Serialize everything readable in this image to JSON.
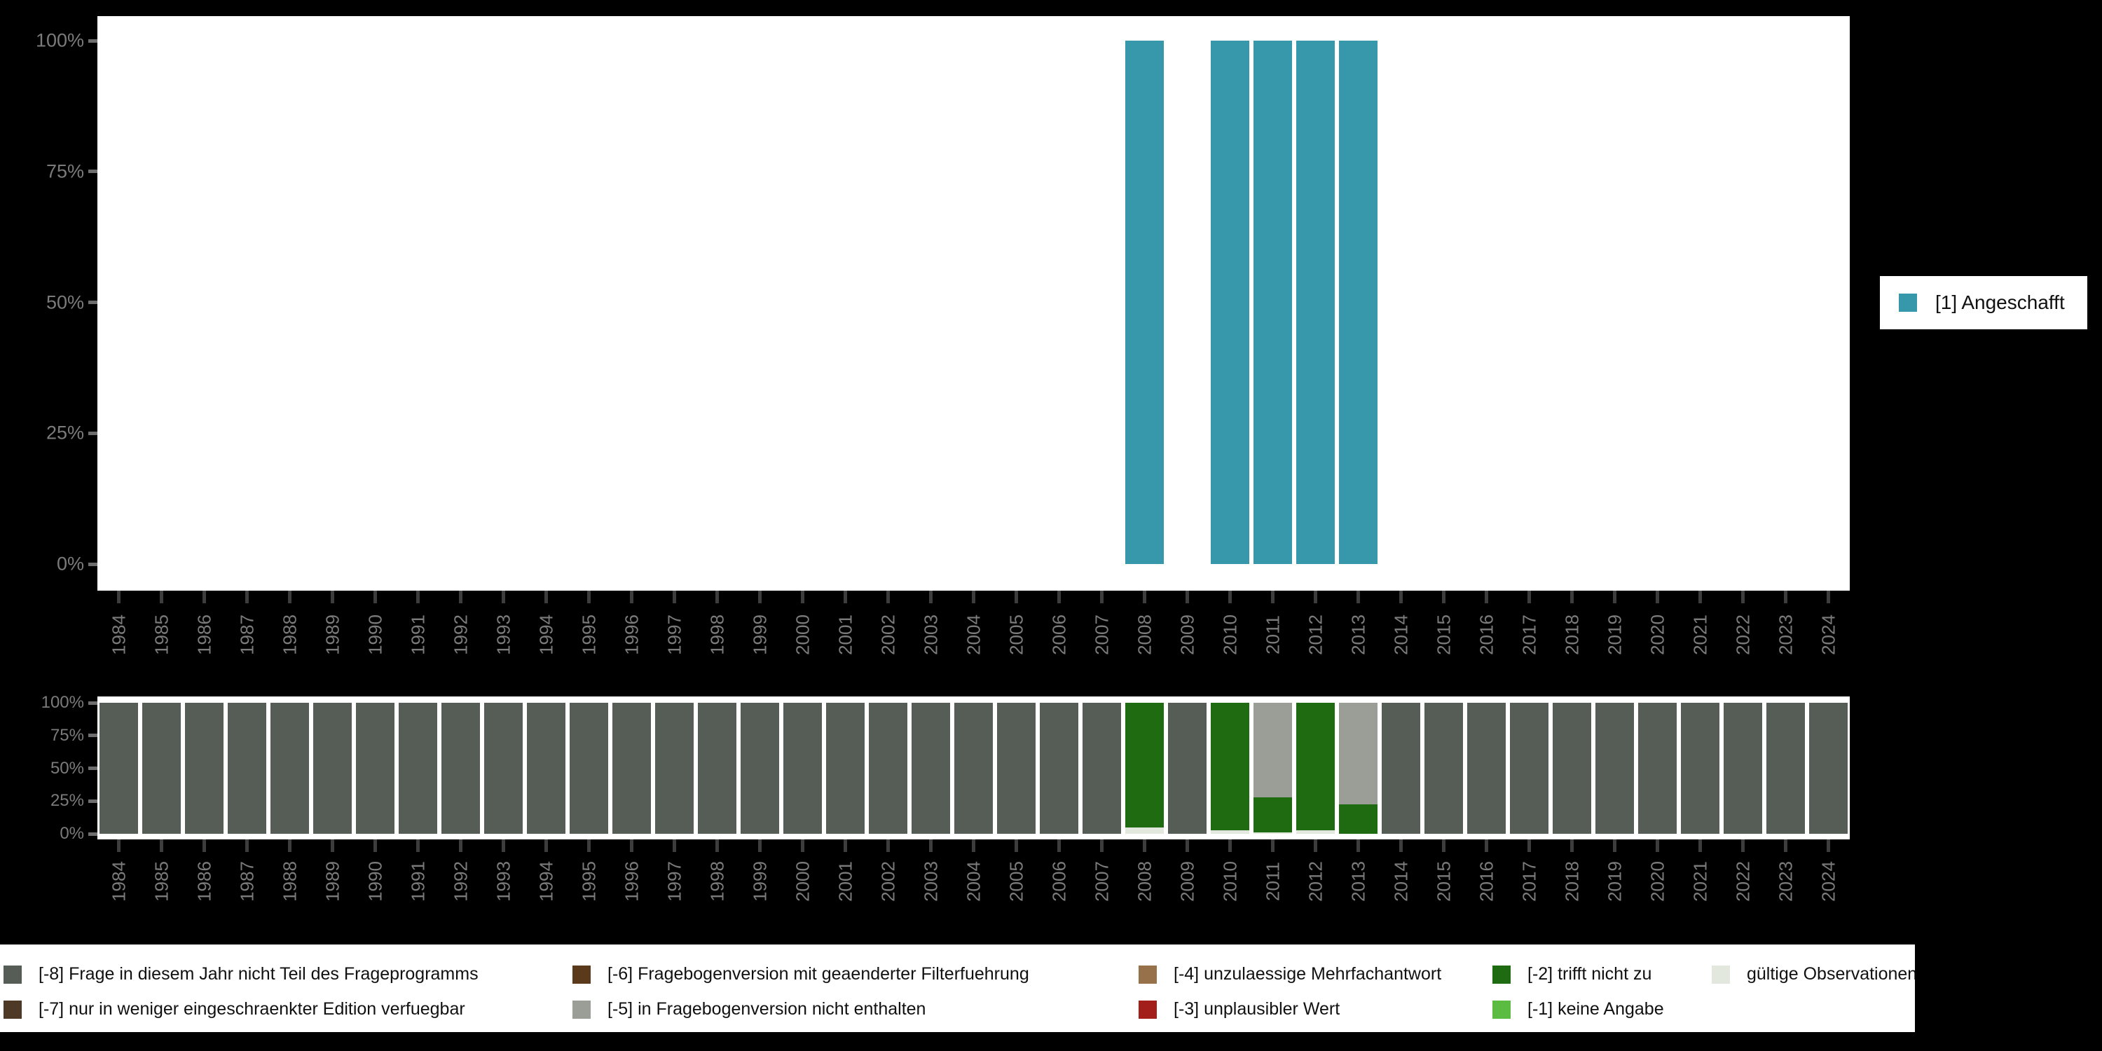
{
  "background": "#000000",
  "colors": {
    "angeschafft": "#3898AB",
    "-8": "#565C56",
    "-7": "#4E3826",
    "-6": "#5A3A1A",
    "-5": "#9A9E96",
    "-4": "#97714A",
    "-3": "#A31F19",
    "-2": "#1E6B12",
    "-1": "#5CBC42",
    "valid": "#E3E8DF",
    "axis_label": "#7b7b7b",
    "plot_background": "#ffffff"
  },
  "axes": {
    "yticks": [
      "100%",
      "75%",
      "50%",
      "25%",
      "0%"
    ]
  },
  "legend_right": {
    "label": "[1] Angeschafft",
    "color_key": "angeschafft"
  },
  "legend_bottom": {
    "entries": {
      "-8": "[-8] Frage in diesem Jahr nicht Teil des Frageprogramms",
      "-7": "[-7] nur in weniger eingeschraenkter Edition verfuegbar",
      "-6": "[-6] Fragebogenversion mit geaenderter Filterfuehrung",
      "-5": "[-5] in Fragebogenversion nicht enthalten",
      "-4": "[-4] unzulaessige Mehrfachantwort",
      "-3": "[-3] unplausibler Wert",
      "-2": "[-2] trifft nicht zu",
      "-1": "[-1] keine Angabe",
      "valid": "gültige Observationen"
    }
  },
  "chart_data": [
    {
      "type": "bar",
      "title": "",
      "xlabel": "",
      "ylabel": "",
      "ylim": [
        0,
        100
      ],
      "ytick_labels": [
        "0%",
        "25%",
        "50%",
        "75%",
        "100%"
      ],
      "legend_position": "right",
      "grid": false,
      "categories": [
        1984,
        1985,
        1986,
        1987,
        1988,
        1989,
        1990,
        1991,
        1992,
        1993,
        1994,
        1995,
        1996,
        1997,
        1998,
        1999,
        2000,
        2001,
        2002,
        2003,
        2004,
        2005,
        2006,
        2007,
        2008,
        2009,
        2010,
        2011,
        2012,
        2013,
        2014,
        2015,
        2016,
        2017,
        2018,
        2019,
        2020,
        2021,
        2022,
        2023,
        2024
      ],
      "series": [
        {
          "name": "[1] Angeschafft",
          "color_key": "angeschafft",
          "values": [
            0,
            0,
            0,
            0,
            0,
            0,
            0,
            0,
            0,
            0,
            0,
            0,
            0,
            0,
            0,
            0,
            0,
            0,
            0,
            0,
            0,
            0,
            0,
            0,
            100,
            0,
            100,
            100,
            100,
            100,
            0,
            0,
            0,
            0,
            0,
            0,
            0,
            0,
            0,
            0,
            0
          ]
        }
      ]
    },
    {
      "type": "bar",
      "stacked": true,
      "title": "",
      "xlabel": "",
      "ylabel": "",
      "ylim": [
        0,
        100
      ],
      "ytick_labels": [
        "0%",
        "25%",
        "50%",
        "75%",
        "100%"
      ],
      "legend_position": "bottom",
      "grid": false,
      "categories": [
        1984,
        1985,
        1986,
        1987,
        1988,
        1989,
        1990,
        1991,
        1992,
        1993,
        1994,
        1995,
        1996,
        1997,
        1998,
        1999,
        2000,
        2001,
        2002,
        2003,
        2004,
        2005,
        2006,
        2007,
        2008,
        2009,
        2010,
        2011,
        2012,
        2013,
        2014,
        2015,
        2016,
        2017,
        2018,
        2019,
        2020,
        2021,
        2022,
        2023,
        2024
      ],
      "series": [
        {
          "name": "[-8] Frage in diesem Jahr nicht Teil des Frageprogramms",
          "code": "-8",
          "values": [
            100,
            100,
            100,
            100,
            100,
            100,
            100,
            100,
            100,
            100,
            100,
            100,
            100,
            100,
            100,
            100,
            100,
            100,
            100,
            100,
            100,
            100,
            100,
            100,
            0,
            100,
            0,
            0,
            0,
            0,
            100,
            100,
            100,
            100,
            100,
            100,
            100,
            100,
            100,
            100,
            100
          ]
        },
        {
          "name": "[-5] in Fragebogenversion nicht enthalten",
          "code": "-5",
          "values": [
            0,
            0,
            0,
            0,
            0,
            0,
            0,
            0,
            0,
            0,
            0,
            0,
            0,
            0,
            0,
            0,
            0,
            0,
            0,
            0,
            0,
            0,
            0,
            0,
            0,
            0,
            0,
            72,
            0,
            77.5,
            0,
            0,
            0,
            0,
            0,
            0,
            0,
            0,
            0,
            0,
            0
          ]
        },
        {
          "name": "[-2] trifft nicht zu",
          "code": "-2",
          "values": [
            0,
            0,
            0,
            0,
            0,
            0,
            0,
            0,
            0,
            0,
            0,
            0,
            0,
            0,
            0,
            0,
            0,
            0,
            0,
            0,
            0,
            0,
            0,
            0,
            95,
            0,
            97.5,
            27,
            97.5,
            22.5,
            0,
            0,
            0,
            0,
            0,
            0,
            0,
            0,
            0,
            0,
            0
          ]
        },
        {
          "name": "gültige Observationen",
          "code": "valid",
          "values": [
            0,
            0,
            0,
            0,
            0,
            0,
            0,
            0,
            0,
            0,
            0,
            0,
            0,
            0,
            0,
            0,
            0,
            0,
            0,
            0,
            0,
            0,
            0,
            0,
            5,
            0,
            2.5,
            1,
            2.5,
            0,
            0,
            0,
            0,
            0,
            0,
            0,
            0,
            0,
            0,
            0,
            0
          ]
        }
      ]
    }
  ]
}
